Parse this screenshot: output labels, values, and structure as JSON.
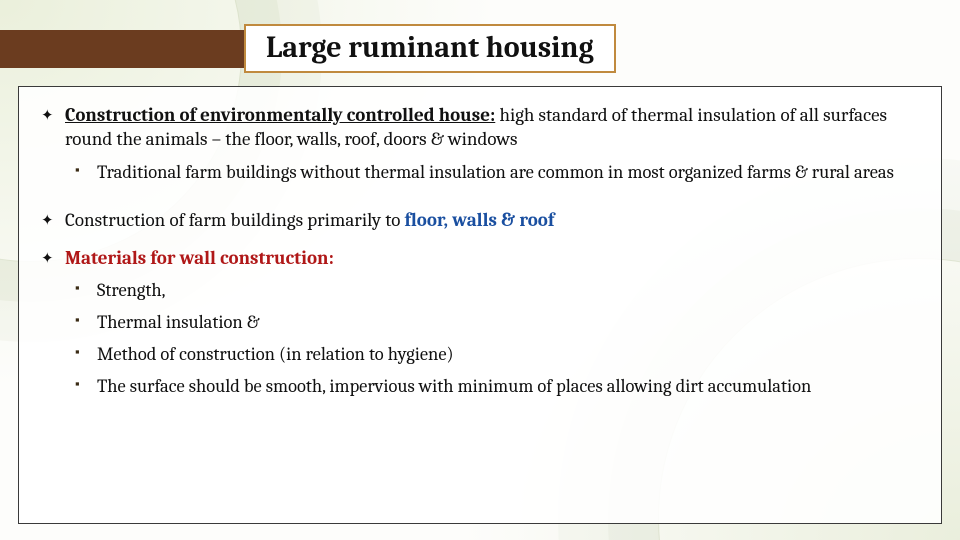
{
  "colors": {
    "arrow": "#6b3c1f",
    "title_border": "#c08a3e",
    "content_border": "#3a3a3a",
    "red_header": "#b01818",
    "link_blue": "#1a4fa0",
    "bullet_square": "#3a2b15",
    "text": "#111111",
    "bg_tint": "#c8d7a0"
  },
  "typography": {
    "family": "Cambria / Georgia (serif)",
    "title_pt": 30,
    "level1_pt": 19,
    "level2_pt": 18.5
  },
  "title": "Large ruminant housing",
  "items": [
    {
      "kind": "l1",
      "lead": "Construction of environmentally controlled house:",
      "rest": " high standard of thermal insulation of all surfaces round the animals – the floor, walls, roof, doors & windows"
    },
    {
      "kind": "l2",
      "text": "Traditional farm buildings without thermal insulation are common in most organized farms & rural areas"
    },
    {
      "kind": "gap",
      "px": 18
    },
    {
      "kind": "l1-mixed",
      "pre": "Construction of farm buildings primarily to ",
      "link": "floor, walls & roof"
    },
    {
      "kind": "l1-red",
      "text": "Materials for wall construction:"
    },
    {
      "kind": "l2",
      "text": "Strength,"
    },
    {
      "kind": "l2",
      "text": "Thermal insulation &"
    },
    {
      "kind": "l2",
      "text": "Method of construction (in relation to hygiene)"
    },
    {
      "kind": "l2",
      "justify": true,
      "text": "The surface should be smooth, impervious with minimum of places allowing dirt accumulation"
    }
  ],
  "bullets": {
    "l1": "✦",
    "l2": "▪"
  }
}
